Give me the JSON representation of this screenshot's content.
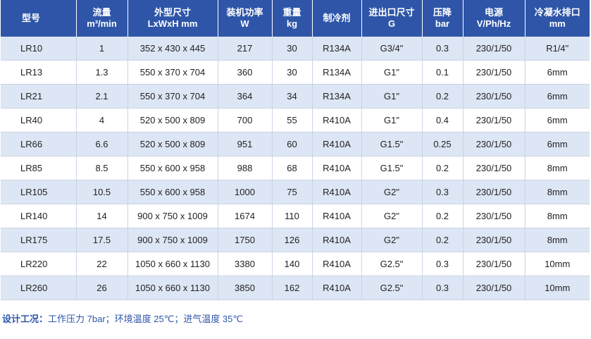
{
  "columns": [
    {
      "name": "型号",
      "unit": ""
    },
    {
      "name": "流量",
      "unit": "m³/min"
    },
    {
      "name": "外型尺寸",
      "unit": "LxWxH mm"
    },
    {
      "name": "装机功率",
      "unit": "W"
    },
    {
      "name": "重量",
      "unit": "kg"
    },
    {
      "name": "制冷剂",
      "unit": ""
    },
    {
      "name": "进出口尺寸",
      "unit": "G"
    },
    {
      "name": "压降",
      "unit": "bar"
    },
    {
      "name": "电源",
      "unit": "V/Ph/Hz"
    },
    {
      "name": "冷凝水排口",
      "unit": "mm"
    }
  ],
  "rows": [
    [
      "LR10",
      "1",
      "352 x 430 x 445",
      "217",
      "30",
      "R134A",
      "G3/4\"",
      "0.3",
      "230/1/50",
      "R1/4\""
    ],
    [
      "LR13",
      "1.3",
      "550 x 370 x 704",
      "360",
      "30",
      "R134A",
      "G1\"",
      "0.1",
      "230/1/50",
      "6mm"
    ],
    [
      "LR21",
      "2.1",
      "550 x 370 x 704",
      "364",
      "34",
      "R134A",
      "G1\"",
      "0.2",
      "230/1/50",
      "6mm"
    ],
    [
      "LR40",
      "4",
      "520 x 500 x 809",
      "700",
      "55",
      "R410A",
      "G1\"",
      "0.4",
      "230/1/50",
      "6mm"
    ],
    [
      "LR66",
      "6.6",
      "520 x 500 x 809",
      "951",
      "60",
      "R410A",
      "G1.5\"",
      "0.25",
      "230/1/50",
      "6mm"
    ],
    [
      "LR85",
      "8.5",
      "550 x 600 x 958",
      "988",
      "68",
      "R410A",
      "G1.5\"",
      "0.2",
      "230/1/50",
      "8mm"
    ],
    [
      "LR105",
      "10.5",
      "550 x 600 x 958",
      "1000",
      "75",
      "R410A",
      "G2\"",
      "0.3",
      "230/1/50",
      "8mm"
    ],
    [
      "LR140",
      "14",
      "900 x 750 x 1009",
      "1674",
      "110",
      "R410A",
      "G2\"",
      "0.2",
      "230/1/50",
      "8mm"
    ],
    [
      "LR175",
      "17.5",
      "900 x 750 x 1009",
      "1750",
      "126",
      "R410A",
      "G2\"",
      "0.2",
      "230/1/50",
      "8mm"
    ],
    [
      "LR220",
      "22",
      "1050 x 660 x 1130",
      "3380",
      "140",
      "R410A",
      "G2.5\"",
      "0.3",
      "230/1/50",
      "10mm"
    ],
    [
      "LR260",
      "26",
      "1050 x 660 x 1130",
      "3850",
      "162",
      "R410A",
      "G2.5\"",
      "0.3",
      "230/1/50",
      "10mm"
    ]
  ],
  "footnote": {
    "label": "设计工况：",
    "text": "工作压力 7bar；环境温度 25℃；进气温度 35℃"
  },
  "colors": {
    "header_bg": "#2e55a8",
    "row_alt_bg": "#dde6f4",
    "footnote_text": "#2e55a8"
  }
}
